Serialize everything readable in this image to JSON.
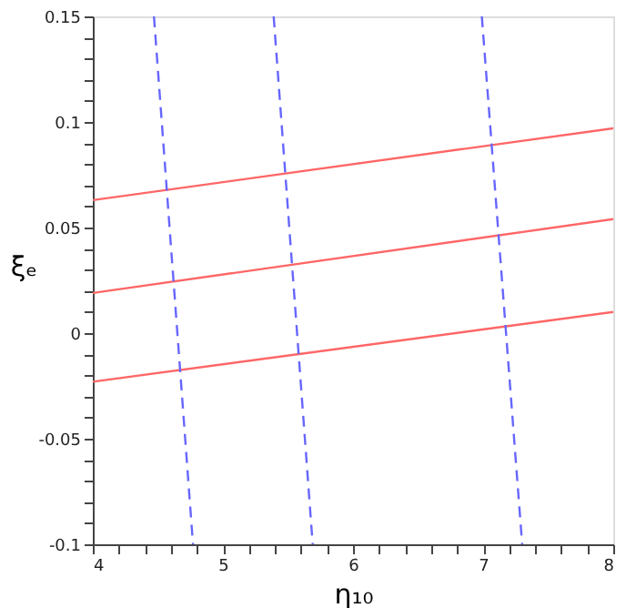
{
  "chart_data": {
    "type": "line",
    "xlabel": "η₁₀",
    "ylabel": "ξₑ",
    "xlim": [
      4,
      8
    ],
    "ylim": [
      -0.1,
      0.15
    ],
    "xticks": [
      4,
      {
        "value": 4.2,
        "label": null
      },
      {
        "value": 4.4,
        "label": null
      },
      {
        "value": 4.6,
        "label": null
      },
      {
        "value": 4.8,
        "label": null
      },
      5,
      {
        "value": 5.2,
        "label": null
      },
      {
        "value": 5.4,
        "label": null
      },
      {
        "value": 5.6,
        "label": null
      },
      {
        "value": 5.8,
        "label": null
      },
      6,
      {
        "value": 6.2,
        "label": null
      },
      {
        "value": 6.4,
        "label": null
      },
      {
        "value": 6.6,
        "label": null
      },
      {
        "value": 6.8,
        "label": null
      },
      7,
      {
        "value": 7.2,
        "label": null
      },
      {
        "value": 7.4,
        "label": null
      },
      {
        "value": 7.6,
        "label": null
      },
      {
        "value": 7.8,
        "label": null
      },
      8
    ],
    "yticks": [
      {
        "value": -0.1,
        "label": "-0.1"
      },
      {
        "value": -0.09,
        "label": null
      },
      {
        "value": -0.08,
        "label": null
      },
      {
        "value": -0.07,
        "label": null
      },
      {
        "value": -0.06,
        "label": null
      },
      -0.05,
      {
        "value": -0.04,
        "label": null
      },
      {
        "value": -0.03,
        "label": null
      },
      {
        "value": -0.02,
        "label": null
      },
      {
        "value": -0.01,
        "label": null
      },
      0,
      {
        "value": 0.01,
        "label": null
      },
      {
        "value": 0.02,
        "label": null
      },
      {
        "value": 0.03,
        "label": null
      },
      {
        "value": 0.04,
        "label": null
      },
      0.05,
      {
        "value": 0.06,
        "label": null
      },
      {
        "value": 0.07,
        "label": null
      },
      {
        "value": 0.08,
        "label": null
      },
      {
        "value": 0.09,
        "label": null
      },
      0.1,
      {
        "value": 0.11,
        "label": null
      },
      {
        "value": 0.12,
        "label": null
      },
      {
        "value": 0.13,
        "label": null
      },
      {
        "value": 0.14,
        "label": null
      },
      0.15
    ],
    "grid": false,
    "marker": "none",
    "series": [
      {
        "color": "#ff6666",
        "line_style": "solid",
        "x": [
          4,
          8
        ],
        "values": [
          0.063,
          0.097
        ]
      },
      {
        "color": "#ff6666",
        "line_style": "solid",
        "x": [
          4,
          8
        ],
        "values": [
          0.019,
          0.054
        ]
      },
      {
        "color": "#ff6666",
        "line_style": "solid",
        "x": [
          4,
          8
        ],
        "values": [
          -0.023,
          0.01
        ]
      },
      {
        "color": "#6666ff",
        "line_style": "dashed",
        "x": [
          4.47,
          4.77
        ],
        "values": [
          0.15,
          -0.1
        ]
      },
      {
        "color": "#6666ff",
        "line_style": "dashed",
        "x": [
          5.39,
          5.69
        ],
        "values": [
          0.15,
          -0.1
        ]
      },
      {
        "color": "#6666ff",
        "line_style": "dashed",
        "x": [
          6.99,
          7.3
        ],
        "values": [
          0.15,
          -0.1
        ]
      }
    ]
  }
}
